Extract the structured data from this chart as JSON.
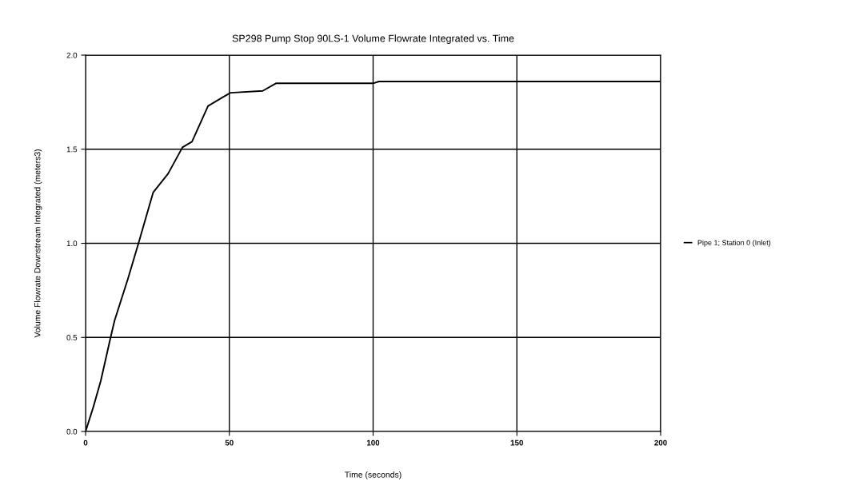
{
  "chart_data": {
    "type": "line",
    "title": "SP298 Pump Stop 90LS-1 Volume Flowrate Integrated vs. Time",
    "xlabel": "Time (seconds)",
    "ylabel": "Volume Flowrate Downstream Integrated (meters3)",
    "x": [
      0,
      2.7,
      5.3,
      8.7,
      10.1,
      14.7,
      18.4,
      23.5,
      28.7,
      33.7,
      37,
      42.6,
      48.1,
      50.4,
      61.6,
      66.2,
      100,
      102,
      200
    ],
    "series": [
      {
        "name": "Pipe 1; Station 0 (Inlet)",
        "color": "#000000",
        "values": [
          0,
          0.13,
          0.27,
          0.5,
          0.59,
          0.81,
          1.0,
          1.27,
          1.37,
          1.51,
          1.54,
          1.73,
          1.78,
          1.8,
          1.81,
          1.85,
          1.85,
          1.86,
          1.86
        ]
      }
    ],
    "xlim": [
      0,
      200
    ],
    "ylim": [
      0,
      2.0
    ],
    "xticks": [
      0,
      50,
      100,
      150,
      200
    ],
    "yticks": [
      {
        "value": 0,
        "label": "0.0"
      },
      {
        "value": 0.5,
        "label": "0.5"
      },
      {
        "value": 1.0,
        "label": "1.0"
      },
      {
        "value": 1.5,
        "label": "1.5"
      },
      {
        "value": 2.0,
        "label": "2.0"
      }
    ],
    "grid": true,
    "legend": "right",
    "marker": "none",
    "line_style": "solid"
  }
}
